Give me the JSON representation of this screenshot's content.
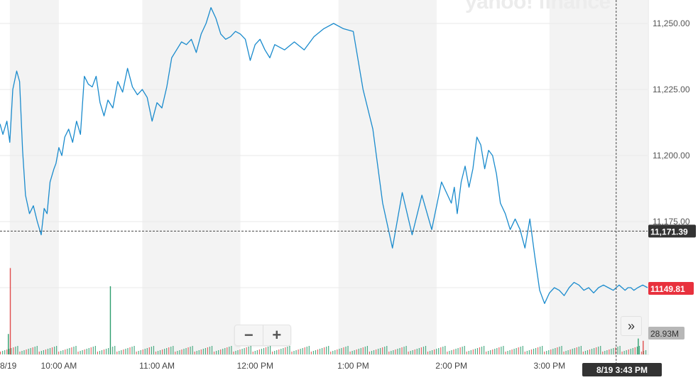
{
  "watermark": "yahoo! finance",
  "chart_data": {
    "type": "line",
    "ylim": [
      11135,
      11262
    ],
    "yticks": [
      {
        "value": 11250,
        "label": "11,250.00"
      },
      {
        "value": 11225,
        "label": "11,225.00"
      },
      {
        "value": 11200,
        "label": "11,200.00"
      },
      {
        "value": 11175,
        "label": "11,175.00"
      }
    ],
    "xlim": [
      9.4,
      16.0
    ],
    "xticks": [
      {
        "value": 9.5,
        "label": "8/19"
      },
      {
        "value": 10,
        "label": "10:00 AM"
      },
      {
        "value": 11,
        "label": "11:00 AM"
      },
      {
        "value": 12,
        "label": "12:00 PM"
      },
      {
        "value": 13,
        "label": "1:00 PM"
      },
      {
        "value": 14,
        "label": "2:00 PM"
      },
      {
        "value": 15,
        "label": "3:00 PM"
      }
    ],
    "shaded_bands": [
      [
        9.5,
        10.0
      ],
      [
        10.85,
        11.85
      ],
      [
        12.85,
        13.85
      ],
      [
        15.0,
        16.0
      ]
    ],
    "series": [
      {
        "x": [
          9.4,
          9.43,
          9.47,
          9.5,
          9.53,
          9.57,
          9.6,
          9.63,
          9.66,
          9.7,
          9.74,
          9.78,
          9.82,
          9.85,
          9.88,
          9.91,
          9.95,
          9.97,
          10.0,
          10.03,
          10.06,
          10.1,
          10.14,
          10.18,
          10.22,
          10.26,
          10.3,
          10.34,
          10.38,
          10.42,
          10.46,
          10.5,
          10.55,
          10.6,
          10.65,
          10.7,
          10.75,
          10.8,
          10.85,
          10.9,
          10.95,
          11.0,
          11.05,
          11.1,
          11.15,
          11.2,
          11.25,
          11.3,
          11.35,
          11.4,
          11.45,
          11.5,
          11.55,
          11.6,
          11.65,
          11.7,
          11.75,
          11.8,
          11.85,
          11.9,
          11.95,
          12.0,
          12.05,
          12.1,
          12.15,
          12.2,
          12.3,
          12.4,
          12.5,
          12.6,
          12.7,
          12.8,
          12.9,
          13.0,
          13.1,
          13.2,
          13.3,
          13.4,
          13.5,
          13.6,
          13.7,
          13.8,
          13.9,
          13.95,
          14.0,
          14.03,
          14.06,
          14.1,
          14.14,
          14.18,
          14.22,
          14.26,
          14.3,
          14.34,
          14.38,
          14.42,
          14.46,
          14.5,
          14.55,
          14.6,
          14.65,
          14.7,
          14.75,
          14.8,
          14.85,
          14.9,
          14.95,
          15.0,
          15.05,
          15.1,
          15.15,
          15.2,
          15.25,
          15.3,
          15.35,
          15.4,
          15.45,
          15.5,
          15.55,
          15.6,
          15.65,
          15.68,
          15.71,
          15.74,
          15.77,
          15.8,
          15.83,
          15.86,
          15.9,
          15.95,
          16.0
        ],
        "y": [
          11212,
          11208,
          11213,
          11205,
          11225,
          11232,
          11228,
          11202,
          11185,
          11178,
          11181,
          11175,
          11170,
          11180,
          11178,
          11190,
          11195,
          11197,
          11203,
          11200,
          11207,
          11210,
          11205,
          11213,
          11208,
          11230,
          11227,
          11226,
          11230,
          11220,
          11215,
          11221,
          11218,
          11228,
          11224,
          11233,
          11226,
          11223,
          11225,
          11222,
          11213,
          11220,
          11218,
          11226,
          11237,
          11240,
          11243,
          11242,
          11244,
          11239,
          11246,
          11250,
          11256,
          11252,
          11246,
          11244,
          11245,
          11247,
          11246,
          11244,
          11236,
          11242,
          11244,
          11240,
          11237,
          11242,
          11240,
          11243,
          11240,
          11245,
          11248,
          11250,
          11248,
          11247,
          11225,
          11210,
          11182,
          11165,
          11186,
          11170,
          11185,
          11172,
          11190,
          11186,
          11182,
          11188,
          11178,
          11190,
          11196,
          11188,
          11195,
          11207,
          11204,
          11195,
          11202,
          11200,
          11193,
          11182,
          11178,
          11172,
          11176,
          11172,
          11165,
          11176,
          11162,
          11149,
          11144,
          11148,
          11150,
          11149,
          11147,
          11150,
          11152,
          11151,
          11149,
          11150,
          11148,
          11150,
          11151,
          11150,
          11149,
          11150,
          11151,
          11150,
          11149,
          11150,
          11150,
          11149,
          11150,
          11151,
          11150
        ]
      }
    ],
    "volume": {
      "label": "28.93M",
      "bars": [
        {
          "x": 9.5,
          "value": 38,
          "up": false
        },
        {
          "x": 10.52,
          "value": 30,
          "up": true
        },
        {
          "x": 9.48,
          "value": 9,
          "up": true
        },
        {
          "x": 15.9,
          "value": 7,
          "up": true
        },
        {
          "x": 15.95,
          "value": 6,
          "up": false
        }
      ]
    },
    "current_line": {
      "value": 11171.39,
      "label": "11,171.39"
    },
    "last_price": {
      "value": 11149.81,
      "label": "11149.81"
    },
    "crosshair": {
      "x": 15.68,
      "label": "8/19 3:43 PM"
    },
    "legend": "none",
    "grid": true
  },
  "colors": {
    "line": "#1a8bcd",
    "band": "#f3f3f3",
    "grid": "#e8e8e8",
    "up": "#2e9e6e",
    "down": "#e04b4b",
    "label_dark": "#333333",
    "label_red": "#e8313d",
    "label_gray": "#b7b7b7"
  },
  "controls": {
    "zoom_out": "−",
    "zoom_in": "+",
    "expand": "»"
  }
}
